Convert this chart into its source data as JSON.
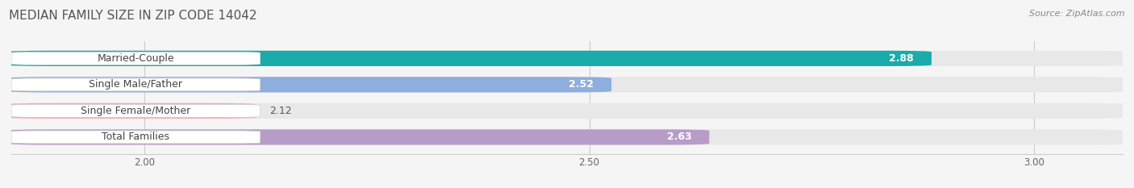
{
  "title": "MEDIAN FAMILY SIZE IN ZIP CODE 14042",
  "source": "Source: ZipAtlas.com",
  "categories": [
    "Married-Couple",
    "Single Male/Father",
    "Single Female/Mother",
    "Total Families"
  ],
  "values": [
    2.88,
    2.52,
    2.12,
    2.63
  ],
  "bar_colors": [
    "#1aabaa",
    "#8eaede",
    "#f4a7b9",
    "#b89cc8"
  ],
  "xlim": [
    1.85,
    3.1
  ],
  "xticks": [
    2.0,
    2.5,
    3.0
  ],
  "xtick_labels": [
    "2.00",
    "2.50",
    "3.00"
  ],
  "bar_height": 0.58,
  "value_fontsize": 9,
  "label_fontsize": 9,
  "title_fontsize": 11,
  "source_fontsize": 8,
  "background_color": "#f5f5f5",
  "bar_bg_color": "#e8e8e8"
}
